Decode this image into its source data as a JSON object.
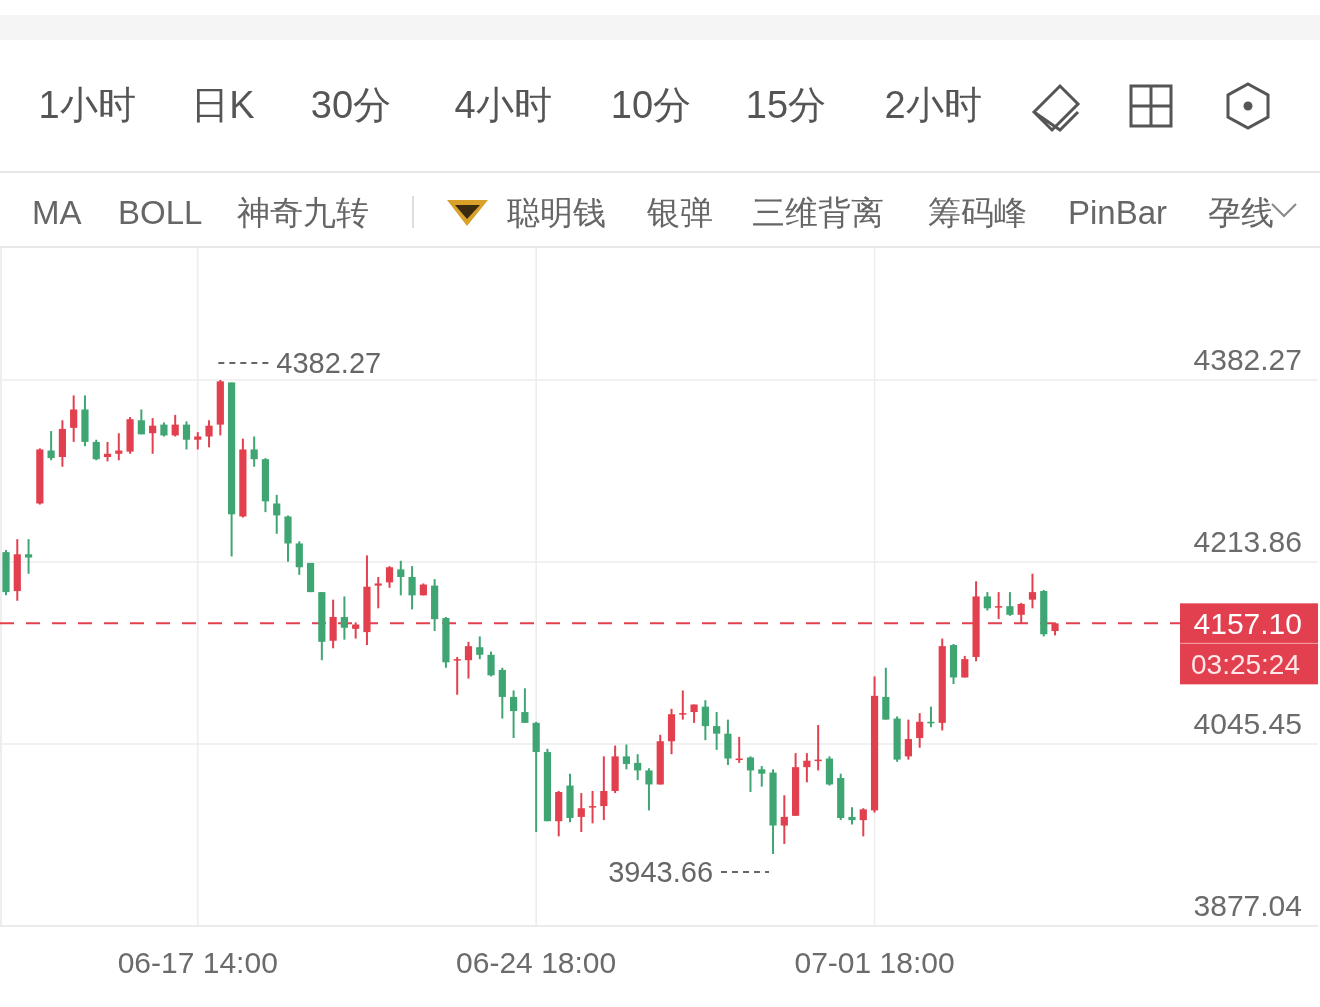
{
  "chart_data": [
    {
      "type": "other",
      "annotations": [
        "1小时",
        "日K",
        "30分",
        "4小时",
        "10分",
        "15分",
        "2小时"
      ]
    },
    {
      "type": "other",
      "annotations": [
        "MA",
        "BOLL",
        "神奇九转",
        "聪明钱",
        "银弹",
        "三维背离",
        "筹码峰",
        "PinBar",
        "孕线"
      ]
    },
    {
      "type": "candlestick",
      "categories": [
        null,
        null,
        null,
        null,
        null,
        null,
        null,
        null,
        null,
        null,
        null,
        null,
        null,
        null,
        null,
        null,
        null,
        "06-17 14:00",
        null,
        null,
        null,
        null,
        null,
        null,
        null,
        null,
        null,
        null,
        null,
        null,
        null,
        null,
        null,
        null,
        null,
        null,
        null,
        null,
        null,
        null,
        null,
        null,
        null,
        null,
        null,
        null,
        null,
        "06-24 18:00",
        null,
        null,
        null,
        null,
        null,
        null,
        null,
        null,
        null,
        null,
        null,
        null,
        null,
        null,
        null,
        null,
        null,
        null,
        null,
        null,
        null,
        null,
        null,
        null,
        null,
        null,
        null,
        null,
        null,
        "07-01 18:00",
        null,
        null,
        null,
        null,
        null,
        null,
        null,
        null,
        null,
        null,
        null,
        null,
        null,
        null,
        null,
        null
      ],
      "ohlc": [
        [
          4223,
          4225,
          4183,
          4186
        ],
        [
          4187,
          4235,
          4178,
          4221
        ],
        [
          4221,
          4235,
          4203,
          4218
        ],
        [
          4268,
          4319,
          4267,
          4318
        ],
        [
          4317,
          4335,
          4308,
          4310
        ],
        [
          4311,
          4345,
          4302,
          4337
        ],
        [
          4338,
          4368,
          4325,
          4355
        ],
        [
          4355,
          4368,
          4321,
          4325
        ],
        [
          4325,
          4327,
          4308,
          4309
        ],
        [
          4311,
          4325,
          4307,
          4314
        ],
        [
          4314,
          4333,
          4308,
          4317
        ],
        [
          4316,
          4348,
          4314,
          4346
        ],
        [
          4345,
          4355,
          4332,
          4332
        ],
        [
          4333,
          4347,
          4314,
          4340
        ],
        [
          4341,
          4343,
          4330,
          4331
        ],
        [
          4331,
          4350,
          4330,
          4341
        ],
        [
          4341,
          4344,
          4318,
          4327
        ],
        [
          4327,
          4334,
          4318,
          4330
        ],
        [
          4330,
          4345,
          4320,
          4340
        ],
        [
          4341,
          4382.27,
          4331,
          4381
        ],
        [
          4380,
          4380,
          4219,
          4258
        ],
        [
          4256,
          4328,
          4255,
          4318
        ],
        [
          4318,
          4330,
          4302,
          4309
        ],
        [
          4309,
          4310,
          4260,
          4270
        ],
        [
          4268,
          4276,
          4240,
          4257
        ],
        [
          4256,
          4257,
          4214,
          4231
        ],
        [
          4231,
          4233,
          4202,
          4209
        ],
        [
          4213,
          4213,
          4186,
          4186
        ],
        [
          4186,
          4186,
          4123,
          4140
        ],
        [
          4141,
          4179,
          4134,
          4163
        ],
        [
          4163,
          4182,
          4142,
          4153
        ],
        [
          4152,
          4158,
          4143,
          4156
        ],
        [
          4149,
          4220,
          4137,
          4191
        ],
        [
          4192,
          4200,
          4171,
          4194
        ],
        [
          4195,
          4210,
          4190,
          4209
        ],
        [
          4207,
          4215,
          4183,
          4200
        ],
        [
          4200,
          4210,
          4170,
          4183
        ],
        [
          4183,
          4194,
          4183,
          4193
        ],
        [
          4192,
          4198,
          4150,
          4161
        ],
        [
          4162,
          4163,
          4116,
          4121
        ],
        [
          4123,
          4126,
          4091,
          4124
        ],
        [
          4123,
          4140,
          4106,
          4136
        ],
        [
          4135,
          4145,
          4124,
          4128
        ],
        [
          4128,
          4131,
          4108,
          4109
        ],
        [
          4114,
          4116,
          4069,
          4089
        ],
        [
          4089,
          4095,
          4051,
          4076
        ],
        [
          4075,
          4097,
          4065,
          4065
        ],
        [
          4065,
          4066,
          3964,
          4038
        ],
        [
          4038,
          4041,
          3974,
          3974
        ],
        [
          3974,
          4002,
          3960,
          4001
        ],
        [
          4007,
          4018,
          3973,
          3977
        ],
        [
          3978,
          4000,
          3964,
          3986
        ],
        [
          3987,
          4002,
          3972,
          3988
        ],
        [
          3988,
          4034,
          3975,
          4002
        ],
        [
          4002,
          4044,
          4000,
          4034
        ],
        [
          4034,
          4045,
          4022,
          4027
        ],
        [
          4028,
          4036,
          4012,
          4021
        ],
        [
          4021,
          4023,
          3984,
          4008
        ],
        [
          4008,
          4054,
          4008,
          4048
        ],
        [
          4048,
          4078,
          4036,
          4073
        ],
        [
          4073,
          4095,
          4068,
          4074
        ],
        [
          4075,
          4082,
          4065,
          4082
        ],
        [
          4080,
          4086,
          4049,
          4062
        ],
        [
          4062,
          4075,
          4040,
          4055
        ],
        [
          4055,
          4068,
          4026,
          4032
        ],
        [
          4031,
          4052,
          4028,
          4032
        ],
        [
          4033,
          4034,
          4001,
          4021
        ],
        [
          4022,
          4025,
          4006,
          4018
        ],
        [
          4019,
          4022,
          3943.66,
          3970
        ],
        [
          3970,
          3998,
          3953,
          3978
        ],
        [
          3979,
          4037,
          3979,
          4024
        ],
        [
          4024,
          4037,
          4010,
          4030
        ],
        [
          4030,
          4063,
          4021,
          4031
        ],
        [
          4032,
          4034,
          4007,
          4008
        ],
        [
          4014,
          4018,
          3975,
          3977
        ],
        [
          3978,
          3987,
          3971,
          3975
        ],
        [
          3975,
          3986,
          3960,
          3985
        ],
        [
          3984,
          4108,
          3982,
          4090
        ],
        [
          4089,
          4116,
          4068,
          4068
        ],
        [
          4069,
          4071,
          4029,
          4031
        ],
        [
          4034,
          4068,
          4031,
          4050
        ],
        [
          4051,
          4074,
          4042,
          4066
        ],
        [
          4066,
          4080,
          4061,
          4065
        ],
        [
          4065,
          4143,
          4058,
          4136
        ],
        [
          4137,
          4138,
          4101,
          4107
        ],
        [
          4107,
          4127,
          4107,
          4124
        ],
        [
          4126,
          4196,
          4122,
          4182
        ],
        [
          4182,
          4186,
          4169,
          4171
        ],
        [
          4172,
          4186,
          4161,
          4173
        ],
        [
          4173,
          4186,
          4164,
          4165
        ],
        [
          4165,
          4176,
          4157,
          4175
        ],
        [
          4179,
          4203,
          4171,
          4186
        ],
        [
          4187,
          4188,
          4145,
          4147
        ],
        [
          4150,
          4158,
          4146,
          4157.1
        ]
      ],
      "ylim": [
        3877.04,
        4504.42
      ],
      "yticks": [
        4382.27,
        4213.86,
        4045.45,
        3877.04
      ],
      "grid": true,
      "ref_lines": [
        {
          "axis": "y",
          "value": 4157.1,
          "label": "4157.10",
          "color": "#e2404e",
          "line_style": "dashed"
        }
      ],
      "annotations": [
        "4382.27",
        "3943.66",
        "03:25:24"
      ]
    }
  ]
}
